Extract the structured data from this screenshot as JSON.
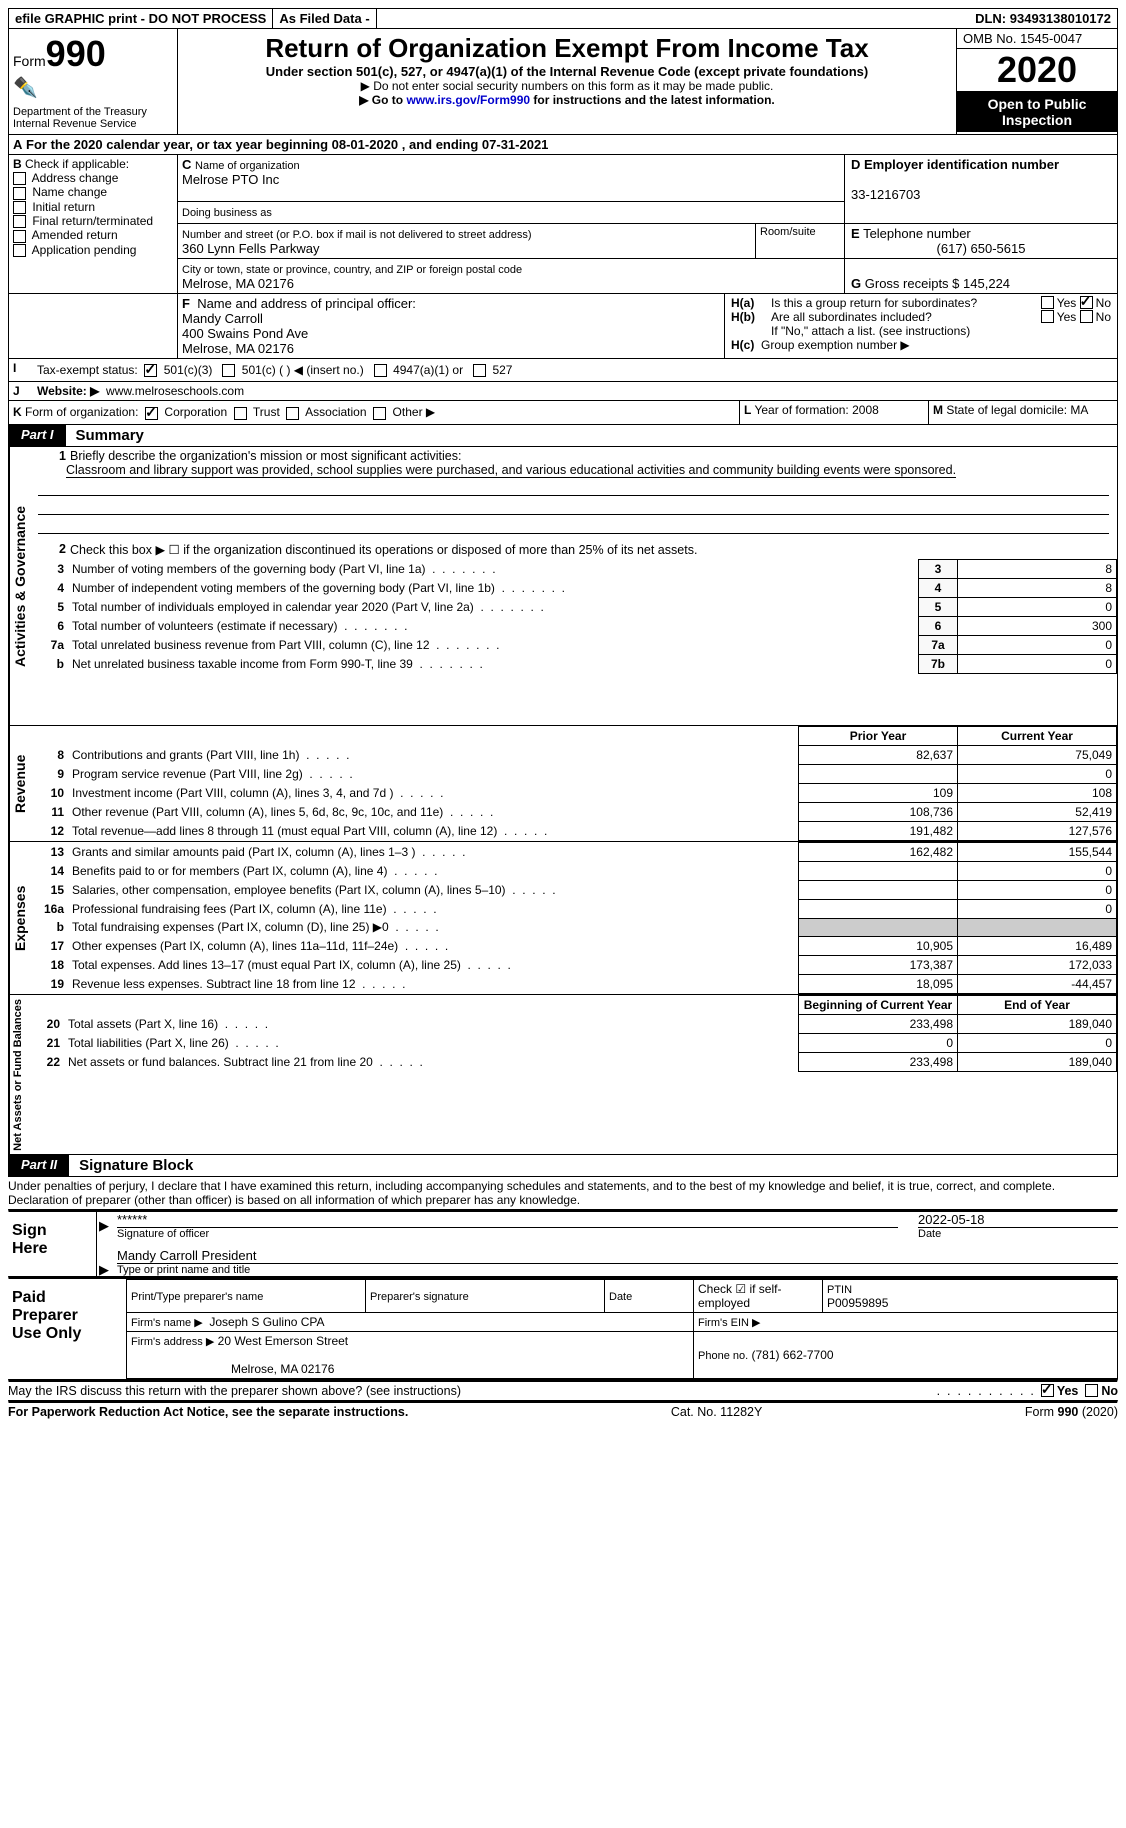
{
  "topbar": {
    "efile": "efile GRAPHIC print - DO NOT PROCESS",
    "asfiled": "As Filed Data -",
    "dln_label": "DLN:",
    "dln": "93493138010172"
  },
  "header": {
    "form_pre": "Form",
    "form_num": "990",
    "dept": "Department of the Treasury\nInternal Revenue Service",
    "title": "Return of Organization Exempt From Income Tax",
    "sub": "Under section 501(c), 527, or 4947(a)(1) of the Internal Revenue Code (except private foundations)",
    "note1": "▶ Do not enter social security numbers on this form as it may be made public.",
    "note2_pre": "▶ Go to ",
    "note2_link": "www.irs.gov/Form990",
    "note2_post": " for instructions and the latest information.",
    "omb": "OMB No. 1545-0047",
    "year": "2020",
    "open": "Open to Public Inspection"
  },
  "A": {
    "label": "A",
    "text": "For the 2020 calendar year, or tax year beginning 08-01-2020   , and ending 07-31-2021"
  },
  "B": {
    "label": "B",
    "text": "Check if applicable:",
    "items": [
      "Address change",
      "Name change",
      "Initial return",
      "Final return/terminated",
      "Amended return",
      "Application pending"
    ]
  },
  "C": {
    "label": "C",
    "org_label": "Name of organization",
    "org": "Melrose PTO Inc",
    "dba_label": "Doing business as",
    "addr_label": "Number and street (or P.O. box if mail is not delivered to street address)",
    "addr": "360 Lynn Fells Parkway",
    "room_label": "Room/suite",
    "city_label": "City or town, state or province, country, and ZIP or foreign postal code",
    "city": "Melrose, MA  02176"
  },
  "D": {
    "label": "D",
    "text": "Employer identification number",
    "value": "33-1216703"
  },
  "E": {
    "label": "E",
    "text": "Telephone number",
    "value": "(617) 650-5615"
  },
  "G": {
    "label": "G",
    "text": "Gross receipts $",
    "value": "145,224"
  },
  "F": {
    "label": "F",
    "text": "Name and address of principal officer:",
    "name": "Mandy Carroll",
    "addr": "400 Swains Pond Ave",
    "city": "Melrose, MA  02176"
  },
  "H": {
    "a": "Is this a group return for subordinates?",
    "b": "Are all subordinates included?",
    "note": "If \"No,\" attach a list. (see instructions)",
    "c": "Group exemption number ▶",
    "ha": "H(a)",
    "hb": "H(b)",
    "hc": "H(c)",
    "yes": "Yes",
    "no": "No"
  },
  "I": {
    "label": "I",
    "text": "Tax-exempt status:",
    "opt1": "501(c)(3)",
    "opt2": "501(c) (   ) ◀ (insert no.)",
    "opt3": "4947(a)(1) or",
    "opt4": "527"
  },
  "J": {
    "label": "J",
    "text": "Website: ▶",
    "value": "www.melroseschools.com"
  },
  "K": {
    "label": "K",
    "text": "Form of organization:",
    "opts": [
      "Corporation",
      "Trust",
      "Association",
      "Other ▶"
    ]
  },
  "L": {
    "label": "L",
    "text": "Year of formation:",
    "value": "2008"
  },
  "M": {
    "label": "M",
    "text": "State of legal domicile:",
    "value": "MA"
  },
  "part1": {
    "tab": "Part I",
    "title": "Summary"
  },
  "summary": {
    "line1_label": "1",
    "line1": "Briefly describe the organization's mission or most significant activities:",
    "line1_text": "Classroom and library support was provided, school supplies were purchased, and various educational activities and community building events were sponsored.",
    "line2_label": "2",
    "line2": "Check this box ▶ ☐ if the organization discontinued its operations or disposed of more than 25% of its net assets.",
    "vert1": "Activities & Governance",
    "vert2": "Revenue",
    "vert3": "Expenses",
    "vert4": "Net Assets or Fund Balances",
    "gov_rows": [
      {
        "n": "3",
        "t": "Number of voting members of the governing body (Part VI, line 1a)",
        "k": "3",
        "v": "8"
      },
      {
        "n": "4",
        "t": "Number of independent voting members of the governing body (Part VI, line 1b)",
        "k": "4",
        "v": "8"
      },
      {
        "n": "5",
        "t": "Total number of individuals employed in calendar year 2020 (Part V, line 2a)",
        "k": "5",
        "v": "0"
      },
      {
        "n": "6",
        "t": "Total number of volunteers (estimate if necessary)",
        "k": "6",
        "v": "300"
      },
      {
        "n": "7a",
        "t": "Total unrelated business revenue from Part VIII, column (C), line 12",
        "k": "7a",
        "v": "0"
      },
      {
        "n": "b",
        "t": "Net unrelated business taxable income from Form 990-T, line 39",
        "k": "7b",
        "v": "0"
      }
    ],
    "col_prior": "Prior Year",
    "col_current": "Current Year",
    "col_begin": "Beginning of Current Year",
    "col_end": "End of Year",
    "rev_rows": [
      {
        "n": "8",
        "t": "Contributions and grants (Part VIII, line 1h)",
        "p": "82,637",
        "c": "75,049"
      },
      {
        "n": "9",
        "t": "Program service revenue (Part VIII, line 2g)",
        "p": "",
        "c": "0"
      },
      {
        "n": "10",
        "t": "Investment income (Part VIII, column (A), lines 3, 4, and 7d )",
        "p": "109",
        "c": "108"
      },
      {
        "n": "11",
        "t": "Other revenue (Part VIII, column (A), lines 5, 6d, 8c, 9c, 10c, and 11e)",
        "p": "108,736",
        "c": "52,419"
      },
      {
        "n": "12",
        "t": "Total revenue—add lines 8 through 11 (must equal Part VIII, column (A), line 12)",
        "p": "191,482",
        "c": "127,576"
      }
    ],
    "exp_rows": [
      {
        "n": "13",
        "t": "Grants and similar amounts paid (Part IX, column (A), lines 1–3 )",
        "p": "162,482",
        "c": "155,544"
      },
      {
        "n": "14",
        "t": "Benefits paid to or for members (Part IX, column (A), line 4)",
        "p": "",
        "c": "0"
      },
      {
        "n": "15",
        "t": "Salaries, other compensation, employee benefits (Part IX, column (A), lines 5–10)",
        "p": "",
        "c": "0"
      },
      {
        "n": "16a",
        "t": "Professional fundraising fees (Part IX, column (A), line 11e)",
        "p": "",
        "c": "0"
      },
      {
        "n": "b",
        "t": "Total fundraising expenses (Part IX, column (D), line 25) ▶0",
        "p": "__NOCELL__",
        "c": "__NOCELL__"
      },
      {
        "n": "17",
        "t": "Other expenses (Part IX, column (A), lines 11a–11d, 11f–24e)",
        "p": "10,905",
        "c": "16,489"
      },
      {
        "n": "18",
        "t": "Total expenses. Add lines 13–17 (must equal Part IX, column (A), line 25)",
        "p": "173,387",
        "c": "172,033"
      },
      {
        "n": "19",
        "t": "Revenue less expenses. Subtract line 18 from line 12",
        "p": "18,095",
        "c": "-44,457"
      }
    ],
    "net_rows": [
      {
        "n": "20",
        "t": "Total assets (Part X, line 16)",
        "p": "233,498",
        "c": "189,040"
      },
      {
        "n": "21",
        "t": "Total liabilities (Part X, line 26)",
        "p": "0",
        "c": "0"
      },
      {
        "n": "22",
        "t": "Net assets or fund balances. Subtract line 21 from line 20",
        "p": "233,498",
        "c": "189,040"
      }
    ]
  },
  "part2": {
    "tab": "Part II",
    "title": "Signature Block"
  },
  "sig": {
    "penalty": "Under penalties of perjury, I declare that I have examined this return, including accompanying schedules and statements, and to the best of my knowledge and belief, it is true, correct, and complete. Declaration of preparer (other than officer) is based on all information of which preparer has any knowledge.",
    "sign": "Sign Here",
    "stars": "******",
    "sig_officer": "Signature of officer",
    "date": "2022-05-18",
    "date_label": "Date",
    "name_title": "Mandy Carroll  President",
    "type_name": "Type or print name and title",
    "paid": "Paid Preparer Use Only",
    "prep_name_label": "Print/Type preparer's name",
    "prep_sig_label": "Preparer's signature",
    "check_self": "Check ☑ if self-employed",
    "ptin_label": "PTIN",
    "ptin": "P00959895",
    "firm_name_label": "Firm's name   ▶",
    "firm_name": "Joseph S Gulino CPA",
    "firm_ein_label": "Firm's EIN ▶",
    "firm_addr_label": "Firm's address ▶",
    "firm_addr": "20 West Emerson Street",
    "firm_city": "Melrose, MA  02176",
    "phone_label": "Phone no.",
    "phone": "(781) 662-7700",
    "discuss": "May the IRS discuss this return with the preparer shown above? (see instructions)"
  },
  "footer": {
    "left": "For Paperwork Reduction Act Notice, see the separate instructions.",
    "mid": "Cat. No. 11282Y",
    "right_pre": "Form ",
    "right_bold": "990",
    "right_post": " (2020)"
  }
}
